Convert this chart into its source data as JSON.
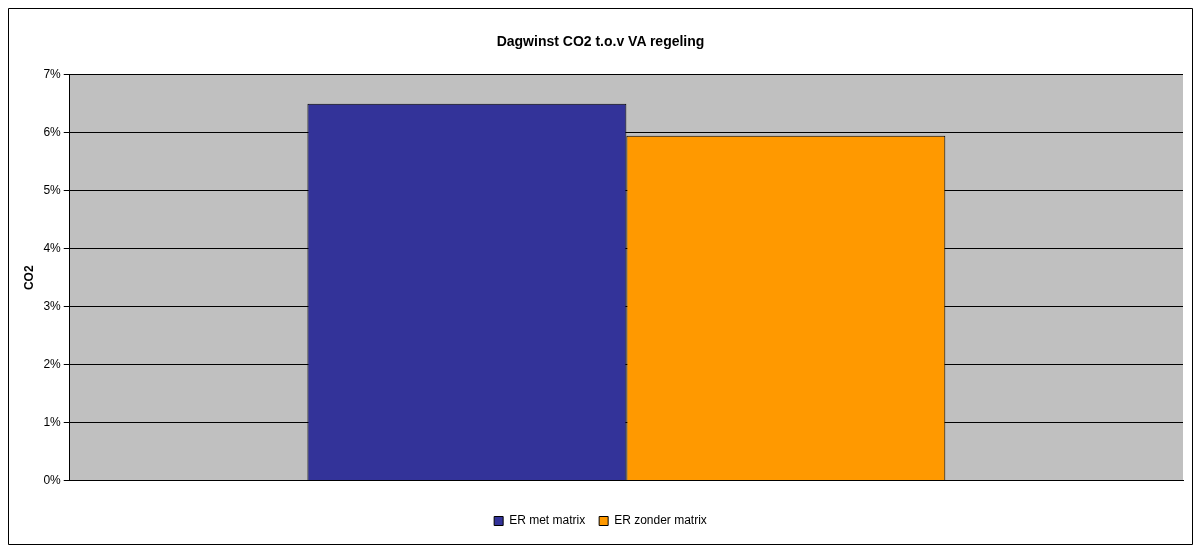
{
  "chart_data": {
    "type": "bar",
    "title": "Dagwinst CO2 t.o.v VA regeling",
    "ylabel": "CO2",
    "categories": [
      null
    ],
    "series": [
      {
        "name": "ER met matrix",
        "color": "#333399",
        "values": [
          6.5
        ]
      },
      {
        "name": "ER zonder matrix",
        "color": "#ff9900",
        "values": [
          5.95
        ]
      }
    ],
    "ylim": [
      0,
      7
    ],
    "yticks": [
      {
        "value": 0,
        "label": "0%"
      },
      {
        "value": 1,
        "label": "1%"
      },
      {
        "value": 2,
        "label": "2%"
      },
      {
        "value": 3,
        "label": "3%"
      },
      {
        "value": 4,
        "label": "4%"
      },
      {
        "value": 5,
        "label": "5%"
      },
      {
        "value": 6,
        "label": "6%"
      },
      {
        "value": 7,
        "label": "7%"
      }
    ],
    "grid": "y",
    "legend": "bottom"
  }
}
